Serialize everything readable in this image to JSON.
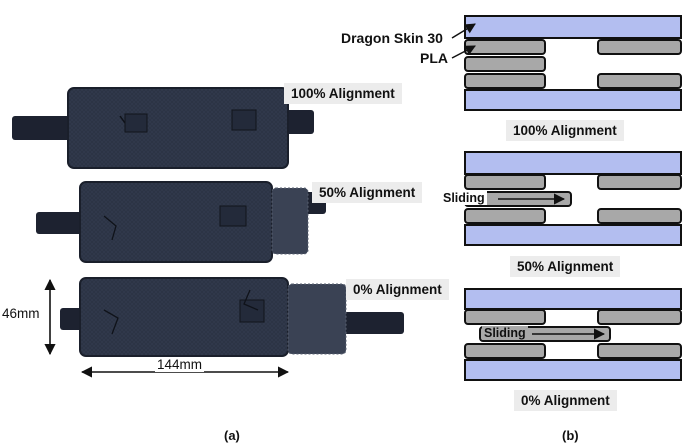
{
  "panel_a": {
    "label": "(a)",
    "samples": [
      {
        "alignment": "100% Alignment"
      },
      {
        "alignment": "50% Alignment"
      },
      {
        "alignment": "0% Alignment"
      }
    ],
    "dimensions": {
      "height": "46mm",
      "width": "144mm"
    }
  },
  "panel_b": {
    "label": "(b)",
    "materials": {
      "top": "Dragon Skin 30",
      "inner": "PLA"
    },
    "diagrams": [
      {
        "alignment": "100% Alignment",
        "motion": ""
      },
      {
        "alignment": "50% Alignment",
        "motion": "Sliding"
      },
      {
        "alignment": "0% Alignment",
        "motion": "Sliding"
      }
    ]
  },
  "colors": {
    "silicone": "#b3bef0",
    "pla": "#a8a8a8",
    "outline": "#111111",
    "fabric": "#2b3344",
    "fabric_dark": "#1a1f2b",
    "tag_bg": "#ececec"
  }
}
